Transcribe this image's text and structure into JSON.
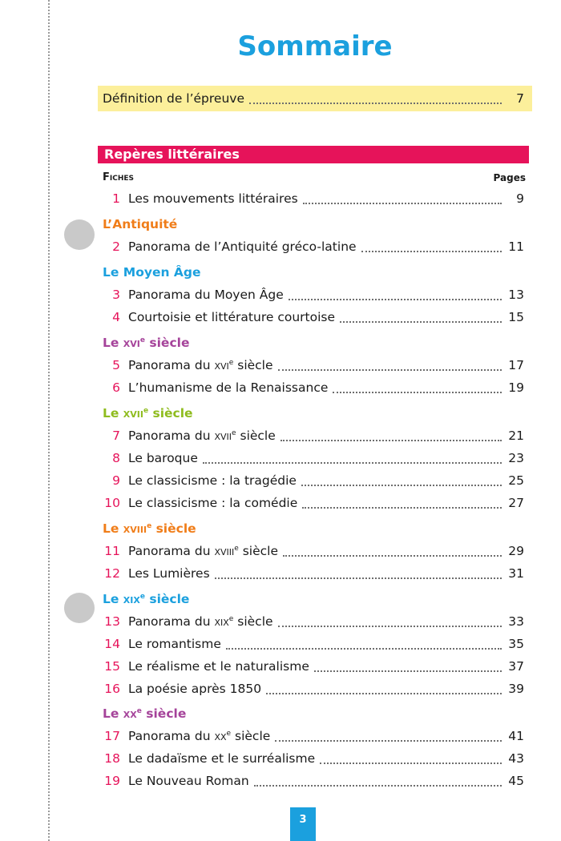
{
  "title": "Sommaire",
  "definition": {
    "label": "Définition de l’épreuve",
    "page": "7"
  },
  "section": {
    "title": "Repères littéraires",
    "fiches_header": "Fiches",
    "pages_header": "Pages"
  },
  "periods": {
    "antiquite": "L’Antiquité",
    "moyen_age": "Le Moyen Âge",
    "xvi": {
      "prefix": "Le ",
      "numeral": "xvi",
      "sup": "e",
      "suffix": " siècle"
    },
    "xvii": {
      "prefix": "Le ",
      "numeral": "xvii",
      "sup": "e",
      "suffix": " siècle"
    },
    "xviii": {
      "prefix": "Le ",
      "numeral": "xviii",
      "sup": "e",
      "suffix": " siècle"
    },
    "xix": {
      "prefix": "Le ",
      "numeral": "xix",
      "sup": "e",
      "suffix": " siècle"
    },
    "xx": {
      "prefix": "Le ",
      "numeral": "xx",
      "sup": "e",
      "suffix": " siècle"
    }
  },
  "fiches": [
    {
      "num": "1",
      "label": "Les mouvements littéraires",
      "page": "9"
    },
    {
      "num": "2",
      "label": "Panorama de l’Antiquité gréco-latine",
      "page": "11"
    },
    {
      "num": "3",
      "label": "Panorama du Moyen Âge",
      "page": "13"
    },
    {
      "num": "4",
      "label": "Courtoisie et littérature courtoise",
      "page": "15"
    },
    {
      "num": "5",
      "label_prefix": "Panorama du ",
      "label_numeral": "xvi",
      "label_sup": "e",
      "label_suffix": " siècle",
      "page": "17"
    },
    {
      "num": "6",
      "label": "L’humanisme de la Renaissance",
      "page": "19"
    },
    {
      "num": "7",
      "label_prefix": "Panorama du ",
      "label_numeral": "xvii",
      "label_sup": "e",
      "label_suffix": " siècle",
      "page": "21"
    },
    {
      "num": "8",
      "label": "Le baroque",
      "page": "23"
    },
    {
      "num": "9",
      "label": "Le classicisme : la tragédie",
      "page": "25"
    },
    {
      "num": "10",
      "label": "Le classicisme : la comédie",
      "page": "27"
    },
    {
      "num": "11",
      "label_prefix": "Panorama du ",
      "label_numeral": "xviii",
      "label_sup": "e",
      "label_suffix": " siècle",
      "page": "29"
    },
    {
      "num": "12",
      "label": "Les Lumières",
      "page": "31"
    },
    {
      "num": "13",
      "label_prefix": "Panorama du ",
      "label_numeral": "xix",
      "label_sup": "e",
      "label_suffix": " siècle",
      "page": "33"
    },
    {
      "num": "14",
      "label": "Le romantisme",
      "page": "35"
    },
    {
      "num": "15",
      "label": "Le réalisme et le naturalisme",
      "page": "37"
    },
    {
      "num": "16",
      "label": "La poésie après 1850",
      "page": "39"
    },
    {
      "num": "17",
      "label_prefix": "Panorama du ",
      "label_numeral": "xx",
      "label_sup": "e",
      "label_suffix": " siècle",
      "page": "41"
    },
    {
      "num": "18",
      "label": "Le dadaïsme et le surréalisme",
      "page": "43"
    },
    {
      "num": "19",
      "label": "Le Nouveau Roman",
      "page": "45"
    }
  ],
  "page_number": "3",
  "colors": {
    "title": "#1ba0de",
    "section": "#e6135a",
    "definition_band": "#fcef9b",
    "antiquite": "#f07d19",
    "moyen_age": "#1ba0de",
    "xvi": "#a5439a",
    "xvii": "#8fbc1e",
    "xviii": "#f07d19",
    "xix": "#1ba0de",
    "xx": "#a5439a"
  }
}
